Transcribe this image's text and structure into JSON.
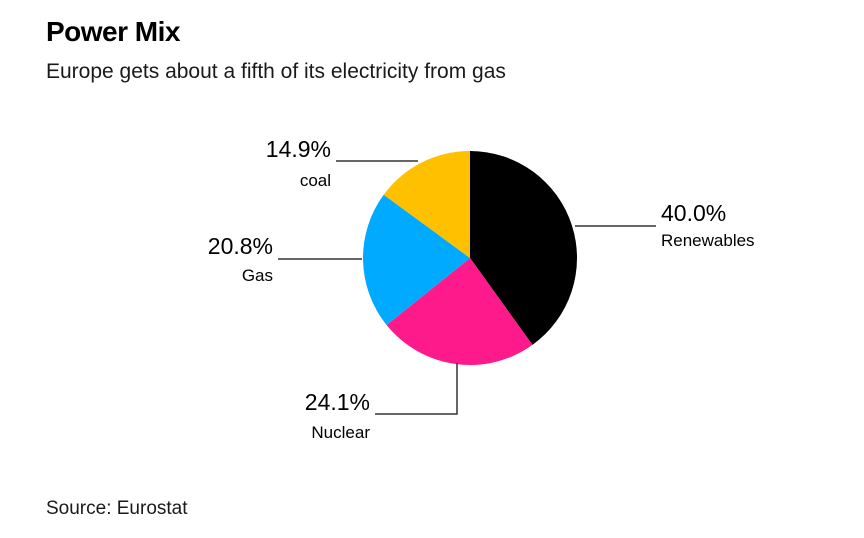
{
  "title": "Power Mix",
  "subtitle": "Europe gets about a fifth of its electricity from gas",
  "source": "Source: Eurostat",
  "chart_data": {
    "type": "pie",
    "title": "Power Mix",
    "subtitle": "Europe gets about a fifth of its electricity from gas",
    "slices": [
      {
        "label": "Renewables",
        "value": 40.0,
        "value_label": "40.0%",
        "color": "#000000"
      },
      {
        "label": "Nuclear",
        "value": 24.1,
        "value_label": "24.1%",
        "color": "#ff1a8c"
      },
      {
        "label": "Gas",
        "value": 20.8,
        "value_label": "20.8%",
        "color": "#00aaff"
      },
      {
        "label": "coal",
        "value": 14.9,
        "value_label": "14.9%",
        "color": "#ffc000"
      }
    ],
    "start": "top",
    "direction": "clockwise",
    "legend": "none"
  }
}
